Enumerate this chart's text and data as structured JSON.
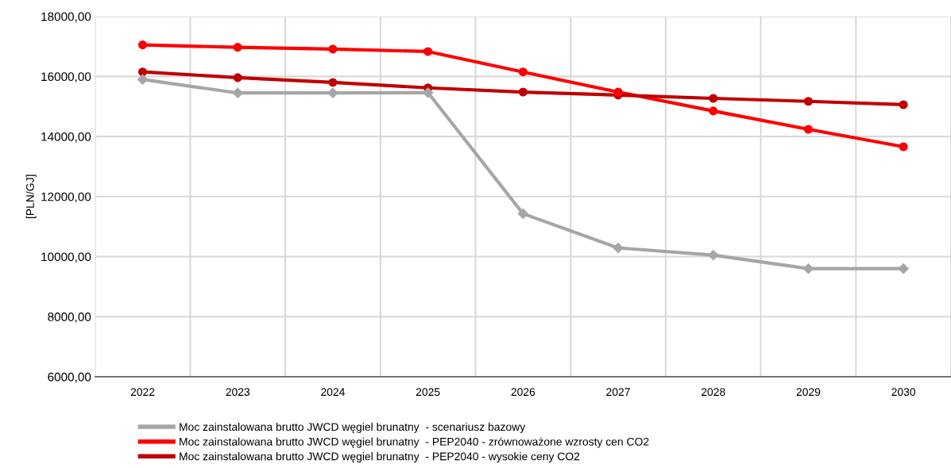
{
  "chart_data": {
    "type": "line",
    "categories": [
      "2022",
      "2023",
      "2024",
      "2025",
      "2026",
      "2027",
      "2028",
      "2029",
      "2030"
    ],
    "ylabel": "[PLN/GJ]",
    "ylim": [
      6000,
      18000
    ],
    "yticks": [
      {
        "value": 6000,
        "label": "6000,00"
      },
      {
        "value": 8000,
        "label": "8000,00"
      },
      {
        "value": 10000,
        "label": "10000,00"
      },
      {
        "value": 12000,
        "label": "12000,00"
      },
      {
        "value": 14000,
        "label": "14000,00"
      },
      {
        "value": 16000,
        "label": "16000,00"
      },
      {
        "value": 18000,
        "label": "18000,00"
      }
    ],
    "grid": true,
    "legend": "bottom",
    "line_style": "solid",
    "series": [
      {
        "name": "Moc zainstalowana brutto JWCD węgiel brunatny  - scenariusz bazowy",
        "color": "#a6a6a6",
        "marker": "diamond",
        "values": [
          15900,
          15450,
          15450,
          15460,
          11430,
          10290,
          10050,
          9600,
          9600
        ]
      },
      {
        "name": "Moc zainstalowana brutto JWCD węgiel brunatny  - PEP2040 - zrównoważone wzrosty cen CO2",
        "color": "#ff0000",
        "marker": "circle",
        "values": [
          17050,
          16970,
          16910,
          16830,
          16150,
          15480,
          14850,
          14240,
          13660
        ]
      },
      {
        "name": "Moc zainstalowana brutto JWCD węgiel brunatny  - PEP2040 - wysokie ceny CO2",
        "color": "#c00000",
        "marker": "circle",
        "values": [
          16150,
          15960,
          15800,
          15620,
          15480,
          15380,
          15270,
          15170,
          15060
        ]
      }
    ]
  }
}
